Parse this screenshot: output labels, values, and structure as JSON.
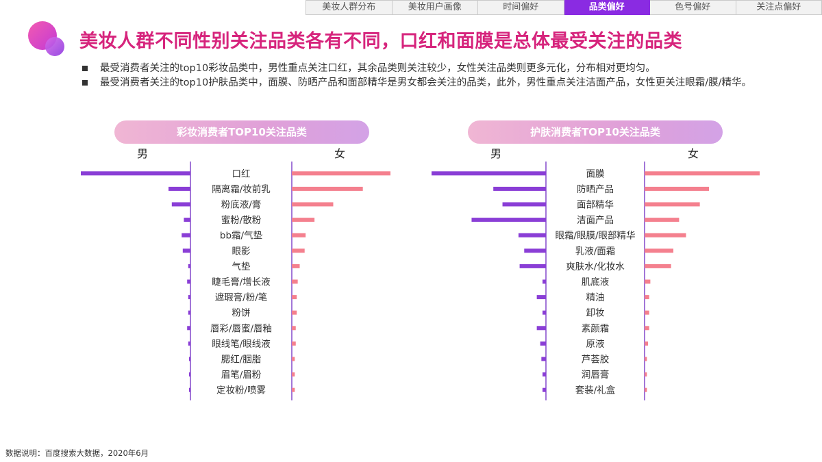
{
  "tabs": [
    {
      "label": "美妆人群分布",
      "active": false
    },
    {
      "label": "美妆用户画像",
      "active": false
    },
    {
      "label": "时间偏好",
      "active": false
    },
    {
      "label": "品类偏好",
      "active": true
    },
    {
      "label": "色号偏好",
      "active": false
    },
    {
      "label": "关注点偏好",
      "active": false
    }
  ],
  "title": "美妆人群不同性别关注品类各有不同，口红和面膜是总体最受关注的品类",
  "bullets": [
    "最受消费者关注的top10彩妆品类中，男性重点关注口红，其余品类则关注较少，女性关注品类则更多元化，分布相对更均匀。",
    "最受消费者关注的top10护肤品类中，面膜、防晒产品和面部精华是男女都会关注的品类，此外，男性重点关注洁面产品，女性更关注眼霜/膜/精华。"
  ],
  "footer": "数据说明：百度搜索大数据，2020年6月",
  "colors": {
    "male": "#8a3ed6",
    "female": "#f4808e",
    "axis": "#7b3cc8",
    "title": "#d6247c"
  },
  "chart_data": [
    {
      "type": "bar",
      "title": "彩妆消费者TOP10关注品类",
      "male_label": "男",
      "female_label": "女",
      "categories": [
        "口红",
        "隔离霜/妆前乳",
        "粉底液/膏",
        "蜜粉/散粉",
        "bb霜/气垫",
        "眼影",
        "气垫",
        "睫毛膏/增长液",
        "遮瑕膏/粉/笔",
        "粉饼",
        "唇彩/唇蜜/唇釉",
        "眼线笔/眼线液",
        "腮红/胭脂",
        "眉笔/眉粉",
        "定妆粉/喷雾"
      ],
      "series": [
        {
          "name": "男",
          "values": [
            100,
            20,
            17,
            6,
            8,
            7,
            2,
            3,
            2,
            2,
            3,
            2,
            1,
            1,
            1
          ]
        },
        {
          "name": "女",
          "values": [
            100,
            72,
            42,
            23,
            14,
            13,
            8,
            6,
            5,
            5,
            4,
            4,
            3,
            3,
            3
          ]
        }
      ]
    },
    {
      "type": "bar",
      "title": "护肤消费者TOP10关注品类",
      "male_label": "男",
      "female_label": "女",
      "categories": [
        "面膜",
        "防晒产品",
        "面部精华",
        "洁面产品",
        "眼霜/眼膜/眼部精华",
        "乳液/面霜",
        "爽肤水/化妆水",
        "肌底液",
        "精油",
        "卸妆",
        "素颜霜",
        "原液",
        "芦荟胶",
        "润唇膏",
        "套装/礼盒"
      ],
      "series": [
        {
          "name": "男",
          "values": [
            100,
            46,
            38,
            65,
            24,
            19,
            23,
            3,
            8,
            3,
            8,
            5,
            4,
            3,
            3
          ]
        },
        {
          "name": "女",
          "values": [
            100,
            56,
            48,
            30,
            36,
            25,
            23,
            5,
            4,
            4,
            4,
            3,
            2,
            2,
            2
          ]
        }
      ]
    }
  ]
}
